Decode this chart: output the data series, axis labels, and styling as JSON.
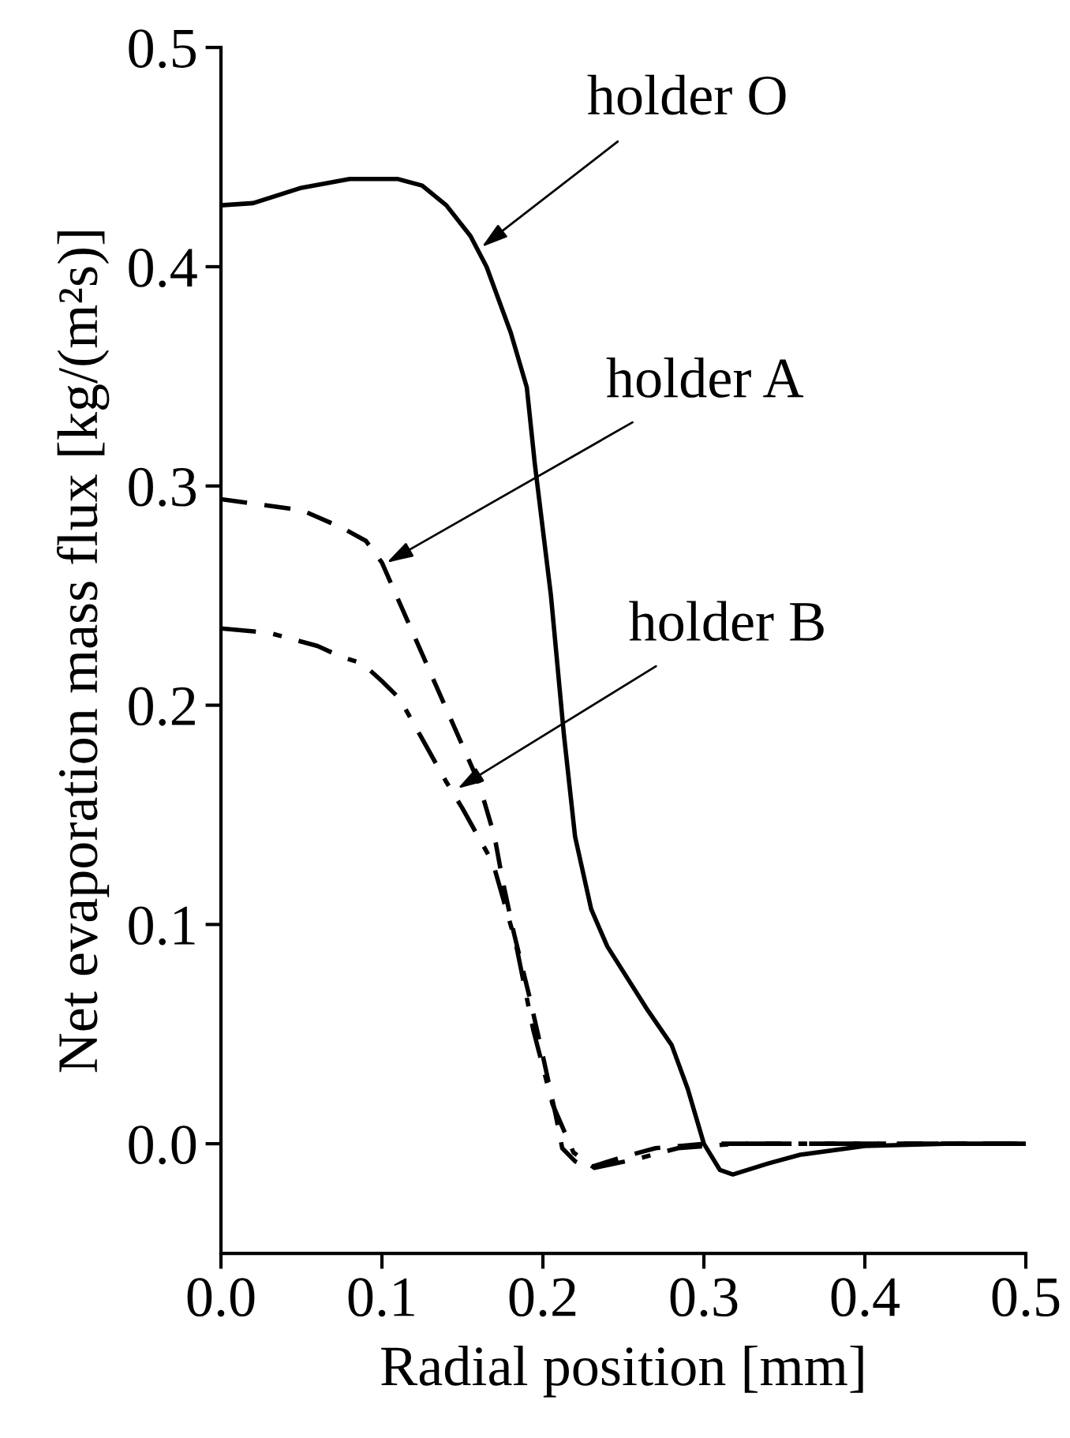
{
  "chart_data": {
    "type": "line",
    "xlabel": "Radial position [mm]",
    "ylabel": "Net evaporation mass flux [kg/(m²s)]",
    "xlim": [
      0,
      0.5
    ],
    "ylim": [
      -0.05,
      0.5
    ],
    "xticks": [
      {
        "value": 0,
        "label": "0.0"
      },
      0.1,
      0.2,
      0.3,
      0.4,
      0.5
    ],
    "yticks": [
      {
        "value": 0,
        "label": "0.0"
      },
      0.1,
      0.2,
      0.3,
      0.4,
      0.5
    ],
    "grid": false,
    "legend": false,
    "marker": "none",
    "series": [
      {
        "color": "#000000",
        "line_style": "solid",
        "x": [
          0,
          0.02,
          0.05,
          0.08,
          0.11,
          0.125,
          0.14,
          0.155,
          0.165,
          0.18,
          0.19,
          0.195,
          0.205,
          0.213,
          0.22,
          0.23,
          0.24,
          0.265,
          0.28,
          0.29,
          0.3,
          0.31,
          0.318,
          0.34,
          0.36,
          0.4,
          0.45,
          0.5
        ],
        "values": [
          0.428,
          0.429,
          0.436,
          0.44,
          0.44,
          0.437,
          0.428,
          0.414,
          0.4,
          0.37,
          0.345,
          0.31,
          0.25,
          0.187,
          0.14,
          0.107,
          0.09,
          0.061,
          0.045,
          0.025,
          0.0,
          -0.012,
          -0.014,
          -0.009,
          -0.005,
          -0.001,
          0,
          0
        ]
      },
      {
        "color": "#000000",
        "line_style": "dashed",
        "x": [
          0,
          0.05,
          0.075,
          0.09,
          0.1,
          0.115,
          0.13,
          0.145,
          0.16,
          0.17,
          0.175,
          0.182,
          0.192,
          0.2,
          0.208,
          0.212,
          0.22,
          0.228,
          0.25,
          0.27,
          0.3,
          0.5
        ],
        "values": [
          0.294,
          0.289,
          0.281,
          0.275,
          0.265,
          0.24,
          0.215,
          0.19,
          0.165,
          0.14,
          0.12,
          0.096,
          0.066,
          0.04,
          0.013,
          -0.002,
          -0.008,
          -0.011,
          -0.006,
          -0.002,
          0,
          0
        ]
      },
      {
        "color": "#000000",
        "line_style": "dashdot",
        "x": [
          0,
          0.03,
          0.06,
          0.075,
          0.088,
          0.1,
          0.111,
          0.124,
          0.14,
          0.15,
          0.169,
          0.183,
          0.194,
          0.206,
          0.219,
          0.232,
          0.258,
          0.284,
          0.32,
          0.5
        ],
        "values": [
          0.235,
          0.233,
          0.227,
          0.222,
          0.219,
          0.211,
          0.203,
          0.186,
          0.165,
          0.153,
          0.128,
          0.092,
          0.052,
          0.018,
          -0.004,
          -0.011,
          -0.007,
          -0.002,
          0,
          0
        ]
      }
    ],
    "annotations": [
      {
        "text": "holder O",
        "x": 0.162,
        "y": 0.409
      },
      {
        "text": "holder A",
        "x": 0.103,
        "y": 0.265
      },
      {
        "text": "holder B",
        "x": 0.147,
        "y": 0.162
      }
    ]
  }
}
